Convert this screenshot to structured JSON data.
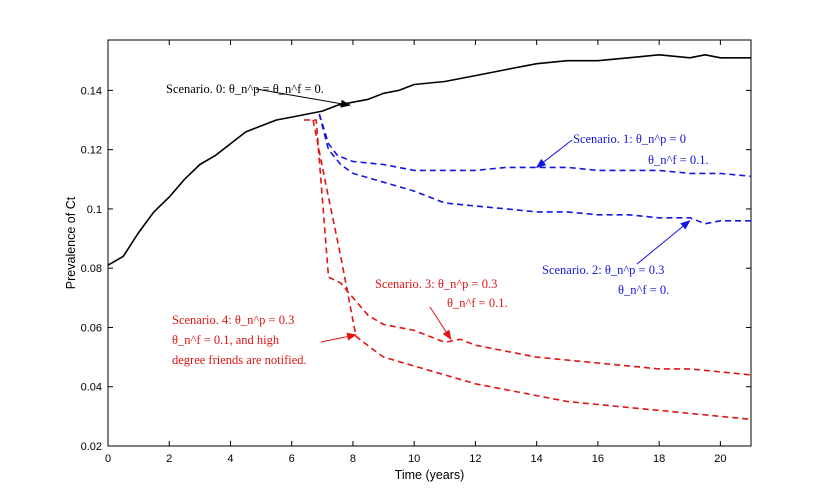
{
  "chart_data": {
    "type": "line",
    "title": "",
    "xlabel": "Time (years)",
    "ylabel": "Prevalence of Ct",
    "xlim": [
      0,
      21
    ],
    "ylim": [
      0.02,
      0.157
    ],
    "xticks": [
      0,
      2,
      4,
      6,
      8,
      10,
      12,
      14,
      16,
      18,
      20
    ],
    "xtick_labels": [
      "0",
      "2",
      "4",
      "6",
      "8",
      "10",
      "12",
      "14",
      "16",
      "18",
      "20"
    ],
    "yticks": [
      0.02,
      0.04,
      0.06,
      0.08,
      0.1,
      0.12,
      0.14
    ],
    "ytick_labels": [
      "0.02",
      "0.04",
      "0.06",
      "0.08",
      "0.1",
      "0.12",
      "0.14"
    ],
    "grid": false,
    "series": [
      {
        "name": "Scenario 0",
        "color": "#000000",
        "style": "solid",
        "x": [
          0,
          0.5,
          1,
          1.5,
          2,
          2.5,
          3,
          3.5,
          4,
          4.5,
          5,
          5.5,
          6,
          6.5,
          7,
          7.5,
          8,
          8.5,
          9,
          9.5,
          10,
          11,
          12,
          13,
          14,
          15,
          16,
          17,
          18,
          19,
          19.5,
          20,
          21
        ],
        "y": [
          0.081,
          0.084,
          0.092,
          0.099,
          0.104,
          0.11,
          0.115,
          0.118,
          0.122,
          0.126,
          0.128,
          0.13,
          0.131,
          0.132,
          0.133,
          0.135,
          0.136,
          0.137,
          0.139,
          0.14,
          0.142,
          0.143,
          0.145,
          0.147,
          0.149,
          0.15,
          0.15,
          0.151,
          0.152,
          0.151,
          0.152,
          0.151,
          0.151
        ]
      },
      {
        "name": "Scenario 1",
        "color": "#1515e0",
        "style": "dashed",
        "x": [
          6.9,
          7.2,
          7.5,
          8,
          9,
          10,
          11,
          12,
          13,
          14,
          15,
          16,
          17,
          18,
          19,
          20,
          21
        ],
        "y": [
          0.132,
          0.122,
          0.118,
          0.116,
          0.115,
          0.113,
          0.113,
          0.113,
          0.114,
          0.114,
          0.114,
          0.113,
          0.113,
          0.113,
          0.112,
          0.112,
          0.111
        ]
      },
      {
        "name": "Scenario 2",
        "color": "#1515e0",
        "style": "dashed",
        "x": [
          6.9,
          7.2,
          7.6,
          8,
          9,
          10,
          11,
          12,
          13,
          14,
          15,
          16,
          17,
          18,
          19,
          19.5,
          20,
          21
        ],
        "y": [
          0.132,
          0.12,
          0.115,
          0.112,
          0.109,
          0.106,
          0.102,
          0.101,
          0.1,
          0.099,
          0.099,
          0.098,
          0.098,
          0.097,
          0.097,
          0.095,
          0.096,
          0.096
        ]
      },
      {
        "name": "Scenario 3",
        "color": "#e01515",
        "style": "dashed",
        "x": [
          6.4,
          6.8,
          7.2,
          7.6,
          8,
          8.5,
          9,
          10,
          11,
          11.5,
          12,
          13,
          14,
          15,
          16,
          17,
          18,
          19,
          20,
          21
        ],
        "y": [
          0.13,
          0.13,
          0.077,
          0.075,
          0.07,
          0.064,
          0.061,
          0.059,
          0.055,
          0.056,
          0.054,
          0.052,
          0.05,
          0.049,
          0.048,
          0.047,
          0.046,
          0.046,
          0.045,
          0.044
        ]
      },
      {
        "name": "Scenario 4",
        "color": "#e01515",
        "style": "dashed",
        "x": [
          6.7,
          7.1,
          7.6,
          8.1,
          8.6,
          9,
          10,
          11,
          12,
          13,
          14,
          15,
          16,
          17,
          18,
          19,
          20,
          21
        ],
        "y": [
          0.13,
          0.109,
          0.084,
          0.057,
          0.053,
          0.05,
          0.047,
          0.044,
          0.041,
          0.039,
          0.037,
          0.035,
          0.034,
          0.033,
          0.032,
          0.031,
          0.03,
          0.029
        ]
      }
    ],
    "annotations": [
      {
        "id": "s0",
        "color": "#000000",
        "lines": [
          "Scenario. 0: θ_n^p = θ_n^f = 0."
        ],
        "arrow_to": [
          7.9,
          0.135
        ]
      },
      {
        "id": "s1",
        "color": "#1515e0",
        "lines": [
          "Scenario. 1: θ_n^p = 0",
          "θ_n^f = 0.1."
        ],
        "arrow_to": [
          14.0,
          0.114
        ]
      },
      {
        "id": "s2",
        "color": "#1515e0",
        "lines": [
          "Scenario. 2: θ_n^p = 0.3",
          "θ_n^f = 0."
        ],
        "arrow_to": [
          19.0,
          0.096
        ]
      },
      {
        "id": "s3",
        "color": "#e01515",
        "lines": [
          "Scenario. 3: θ_n^p = 0.3",
          "θ_n^f = 0.1."
        ],
        "arrow_to": [
          11.2,
          0.056
        ]
      },
      {
        "id": "s4",
        "color": "#e01515",
        "lines": [
          "Scenario. 4: θ_n^p = 0.3",
          "θ_n^f = 0.1, and high",
          "degree friends are notified."
        ],
        "arrow_to": [
          8.1,
          0.0575
        ]
      }
    ]
  }
}
